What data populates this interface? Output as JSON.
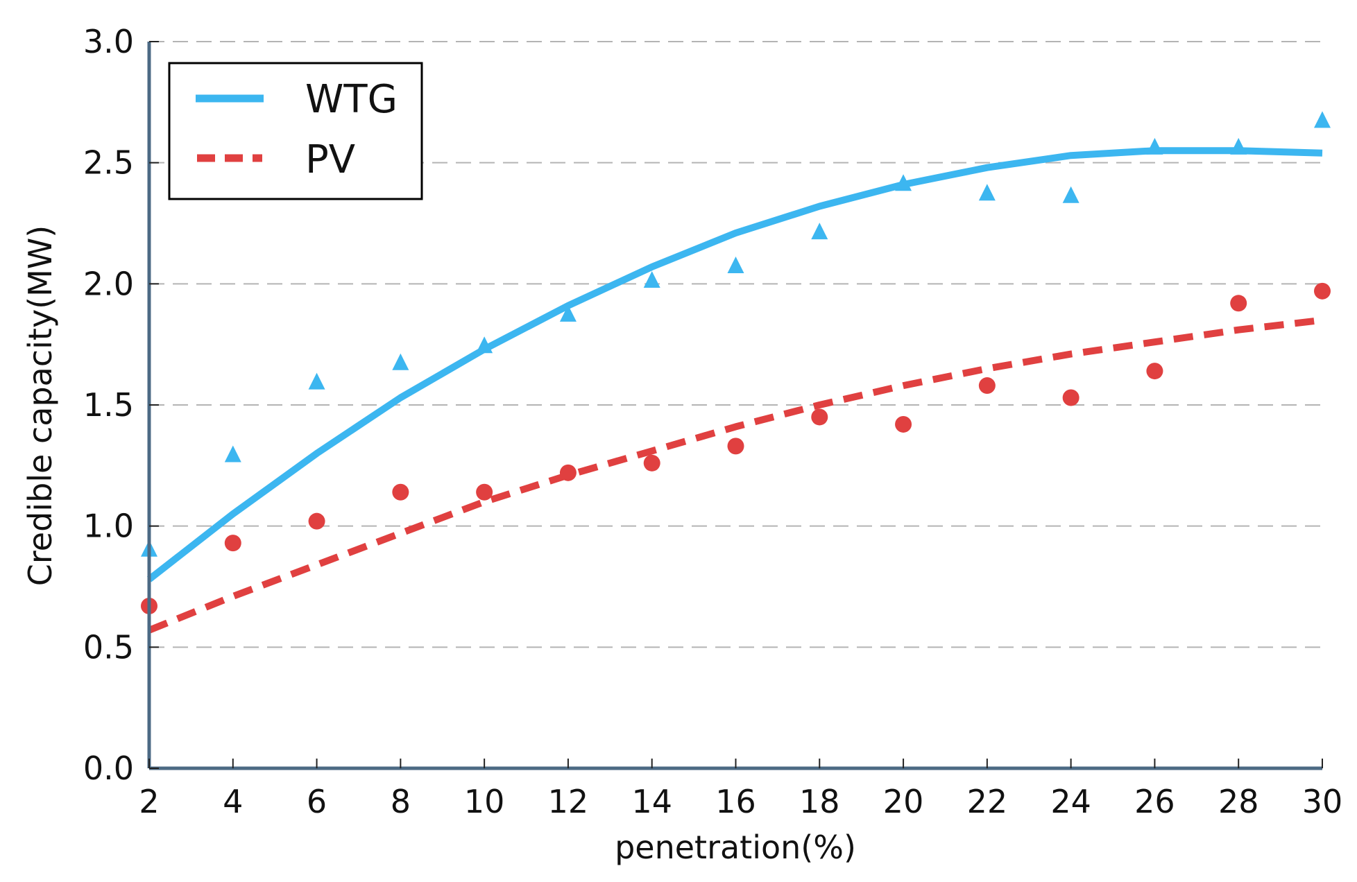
{
  "chart_data": {
    "type": "line",
    "title": "",
    "xlabel": "penetration(%)",
    "ylabel": "Credible capacity(MW)",
    "xlim": [
      2,
      30
    ],
    "ylim": [
      0.0,
      3.0
    ],
    "x_ticks": [
      2,
      4,
      6,
      8,
      10,
      12,
      14,
      16,
      18,
      20,
      22,
      24,
      26,
      28,
      30
    ],
    "y_ticks": [
      "0.0",
      "0.5",
      "1.0",
      "1.5",
      "2.0",
      "2.5",
      "3.0"
    ],
    "grid": "horizontal dashed",
    "legend_position": "top-left",
    "x": [
      2,
      4,
      6,
      8,
      10,
      12,
      14,
      16,
      18,
      20,
      22,
      24,
      26,
      28,
      30
    ],
    "series": [
      {
        "name": "WTG",
        "color": "#3cb6f0",
        "line_style": "solid",
        "marker": "triangle",
        "fit": [
          0.78,
          1.05,
          1.3,
          1.53,
          1.73,
          1.91,
          2.07,
          2.21,
          2.32,
          2.41,
          2.48,
          2.53,
          2.55,
          2.55,
          2.54
        ],
        "observed": [
          0.9,
          1.29,
          1.59,
          1.67,
          1.74,
          1.87,
          2.01,
          2.07,
          2.21,
          2.41,
          2.37,
          2.36,
          2.56,
          2.56,
          2.67
        ]
      },
      {
        "name": "PV",
        "color": "#e04040",
        "line_style": "dashed",
        "marker": "circle",
        "fit": [
          0.57,
          0.71,
          0.84,
          0.97,
          1.1,
          1.21,
          1.31,
          1.41,
          1.5,
          1.58,
          1.65,
          1.71,
          1.76,
          1.81,
          1.85
        ],
        "observed": [
          0.67,
          0.93,
          1.02,
          1.14,
          1.14,
          1.22,
          1.26,
          1.33,
          1.45,
          1.42,
          1.58,
          1.53,
          1.64,
          1.92,
          1.97
        ]
      }
    ]
  }
}
